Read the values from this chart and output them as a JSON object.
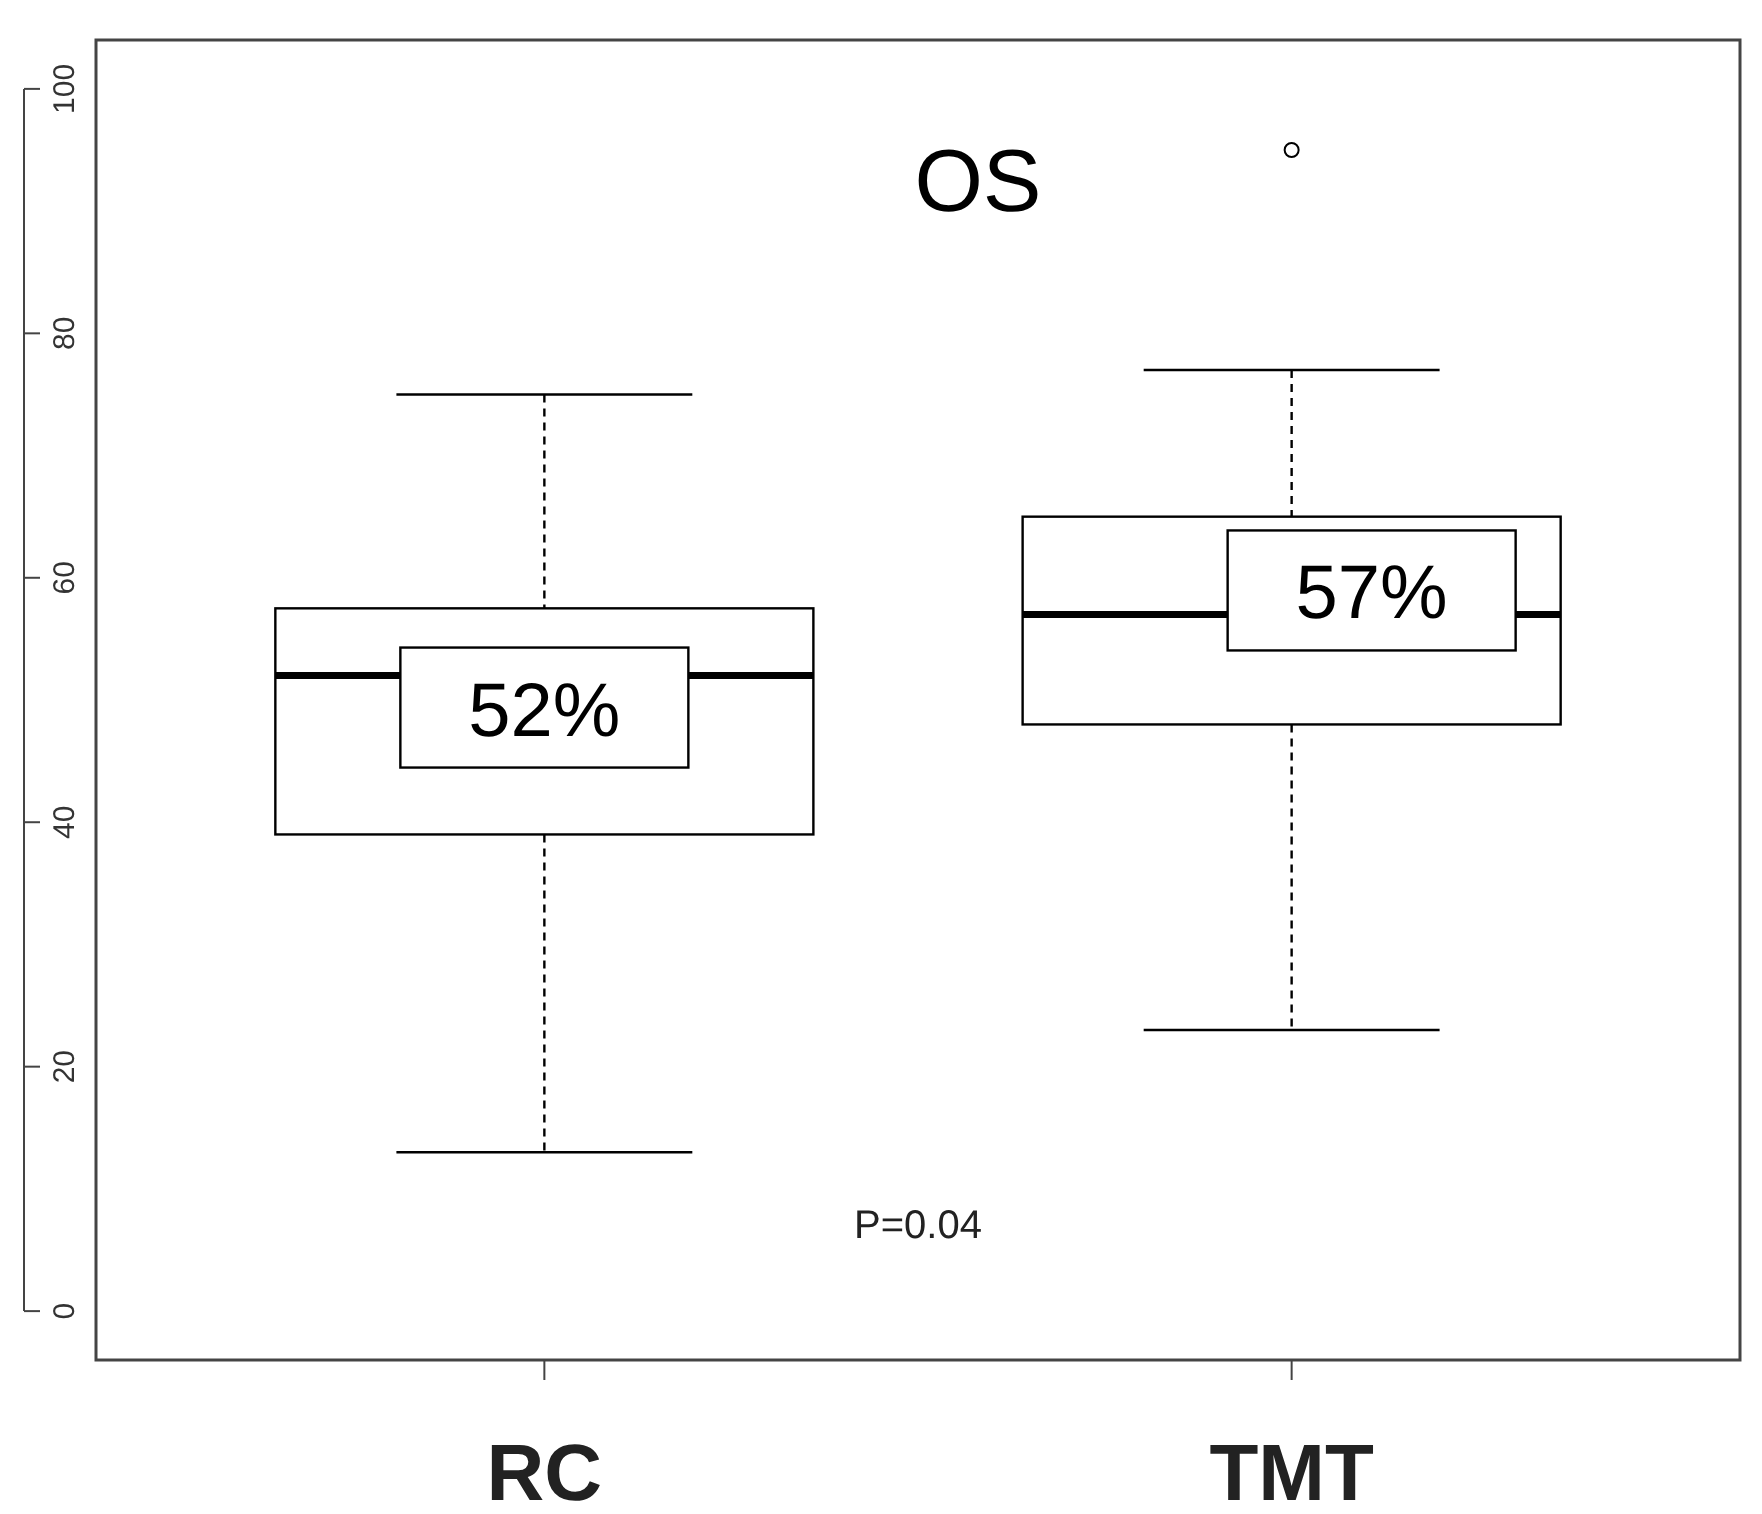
{
  "chart_data": {
    "type": "box",
    "title": "OS",
    "categories": [
      "RC",
      "TMT"
    ],
    "boxes": [
      {
        "low": 13,
        "q1": 39,
        "median": 52,
        "q3": 57.5,
        "high": 75
      },
      {
        "low": 23,
        "q1": 48,
        "median": 57,
        "q3": 65,
        "high": 77,
        "outliers": [
          95
        ]
      }
    ],
    "ylim": [
      -4,
      104
    ],
    "yticks": [
      0,
      20,
      40,
      60,
      80,
      100
    ],
    "grid": false,
    "annotations": [
      {
        "text": "52%",
        "x": "RC",
        "y": 52
      },
      {
        "text": "57%",
        "x": "TMT",
        "y": 57
      },
      "P=0.04"
    ]
  }
}
